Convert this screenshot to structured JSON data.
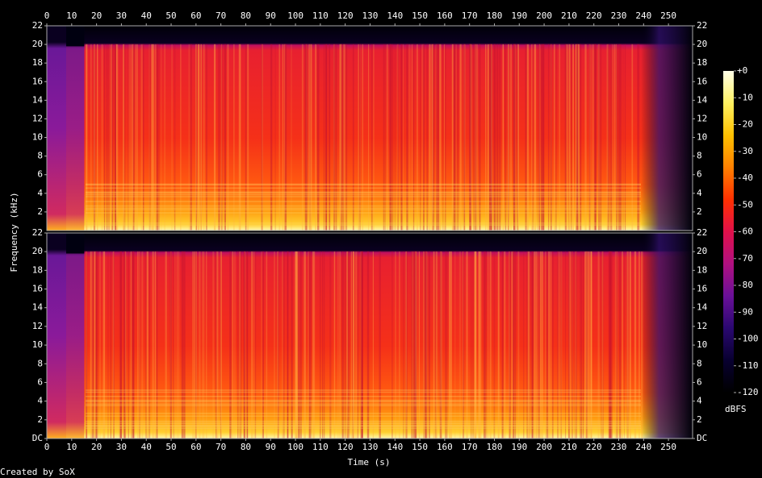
{
  "figure": {
    "xlabel": "Time (s)",
    "ylabel": "Frequency (kHz)",
    "credit": "Created by SoX",
    "colorbar": {
      "label": "dBFS",
      "lim": [
        -120,
        0
      ],
      "ticks": [
        {
          "value": 0,
          "label": "+0"
        },
        -10,
        -20,
        -30,
        -40,
        -50,
        -60,
        -70,
        -80,
        -90,
        -100,
        -110,
        -120
      ],
      "colors": [
        "#ffffe8",
        "#fff060",
        "#ffc000",
        "#ff8000",
        "#ff3000",
        "#e0104a",
        "#b01080",
        "#6a1098",
        "#2a0870",
        "#080030",
        "#000000"
      ]
    }
  },
  "chart_data": [
    {
      "type": "spectrogram",
      "xlim": [
        0,
        259.7
      ],
      "ylim": [
        0,
        22
      ],
      "xticks": [
        0,
        10,
        20,
        30,
        40,
        50,
        60,
        70,
        80,
        90,
        100,
        110,
        120,
        130,
        140,
        150,
        160,
        170,
        180,
        190,
        200,
        210,
        220,
        230,
        240,
        250
      ],
      "yticks": [
        2,
        4,
        6,
        8,
        10,
        12,
        14,
        16,
        18,
        20,
        22
      ]
    },
    {
      "type": "spectrogram",
      "xlim": [
        0,
        259.7
      ],
      "ylim": [
        0,
        22
      ],
      "xticks": [
        0,
        10,
        20,
        30,
        40,
        50,
        60,
        70,
        80,
        90,
        100,
        110,
        120,
        130,
        140,
        150,
        160,
        170,
        180,
        190,
        200,
        210,
        220,
        230,
        240,
        250
      ],
      "yticks": [
        {
          "value": 0,
          "label": "DC"
        },
        2,
        4,
        6,
        8,
        10,
        12,
        14,
        16,
        18,
        20,
        22
      ]
    }
  ]
}
